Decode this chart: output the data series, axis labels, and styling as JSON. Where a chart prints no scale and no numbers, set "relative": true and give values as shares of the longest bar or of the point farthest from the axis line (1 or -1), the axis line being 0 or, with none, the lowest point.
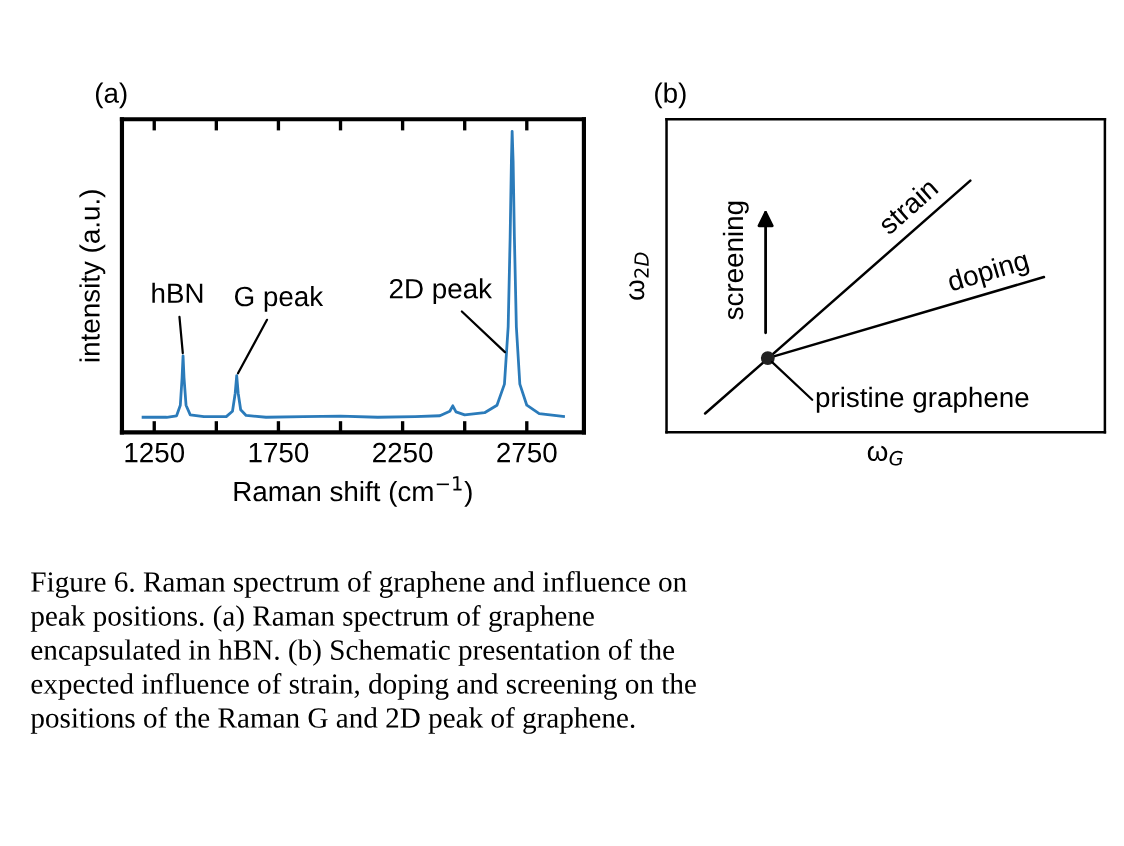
{
  "chart_data": [
    {
      "type": "line",
      "title": "(a)",
      "xlabel": "Raman shift (cm$^{−1}$)",
      "ylabel": "intensity (a.u.)",
      "relative": true,
      "xlim": [
        1120,
        2980
      ],
      "xticks": [
        1250,
        {
          "value": 1500,
          "label": null
        },
        1750,
        {
          "value": 2000,
          "label": null
        },
        2250,
        {
          "value": 2500,
          "label": null
        },
        2750
      ],
      "tick_labels": "x",
      "legend": false,
      "grid": false,
      "x": [
        1205,
        1300,
        1340,
        1355,
        1362,
        1366,
        1370,
        1378,
        1395,
        1450,
        1540,
        1565,
        1576,
        1582,
        1588,
        1598,
        1620,
        1700,
        1850,
        2000,
        2150,
        2300,
        2400,
        2440,
        2452,
        2465,
        2500,
        2580,
        2630,
        2660,
        2675,
        2683,
        2688,
        2691,
        2695,
        2700,
        2708,
        2722,
        2750,
        2800,
        2898
      ],
      "series": [
        {
          "color": "#2b7bba",
          "values": [
            0.05,
            0.05,
            0.055,
            0.09,
            0.18,
            0.254,
            0.18,
            0.09,
            0.058,
            0.052,
            0.052,
            0.07,
            0.13,
            0.188,
            0.13,
            0.075,
            0.056,
            0.05,
            0.052,
            0.054,
            0.05,
            0.052,
            0.055,
            0.07,
            0.088,
            0.068,
            0.058,
            0.065,
            0.09,
            0.16,
            0.35,
            0.65,
            0.9,
            1.0,
            0.9,
            0.65,
            0.35,
            0.16,
            0.09,
            0.062,
            0.053
          ]
        }
      ],
      "annotations": [
        {
          "text": "hBN",
          "x": 1366,
          "y": 0.254
        },
        {
          "text": "G peak",
          "x": 1582,
          "y": 0.188
        },
        {
          "text": "2D peak",
          "x": 2670,
          "y": 0.26
        },
        "Figure 6. Raman spectrum of graphene and influence on\npeak positions. (a) Raman spectrum of graphene\nencapsulated in hBN. (b) Schematic presentation of the\nexpected influence of strain, doping and screening on the\npositions of the Raman G and 2D peak of graphene."
      ]
    },
    {
      "type": "other",
      "title": "(b)",
      "xlabel": "ω$_{G}$",
      "ylabel": "ω$_{2D}$",
      "annotations": [
        "strain",
        "doping",
        "pristine graphene",
        "screening"
      ]
    }
  ]
}
